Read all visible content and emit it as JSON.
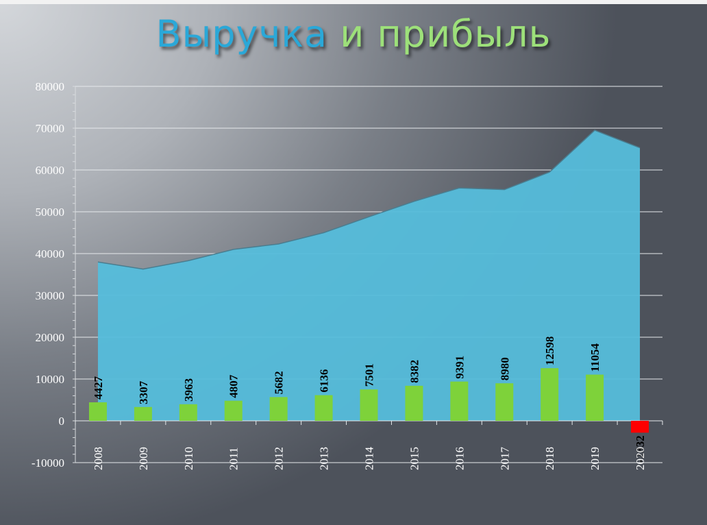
{
  "title": {
    "word1": "Выручка",
    "word2": "и прибыль"
  },
  "colors": {
    "revenue": "#55bddb",
    "profit": "#7ed23a",
    "loss": "#ff0000"
  },
  "chart_data": {
    "type": "area",
    "title": "Выручка и прибыль",
    "categories": [
      "2008",
      "2009",
      "2010",
      "2011",
      "2012",
      "2013",
      "2014",
      "2015",
      "2016",
      "2017",
      "2018",
      "2019",
      "2020"
    ],
    "yticks": [
      "80000",
      "70000",
      "60000",
      "50000",
      "40000",
      "30000",
      "20000",
      "10000",
      "0",
      "-10000"
    ],
    "ylim": [
      -10000,
      80000
    ],
    "grid": true,
    "series": [
      {
        "type": "area",
        "values": [
          38000,
          36300,
          38300,
          41000,
          42300,
          45000,
          48800,
          52500,
          55700,
          55300,
          59500,
          69500,
          65300
        ]
      },
      {
        "type": "bar",
        "values": [
          4427,
          3307,
          3963,
          4807,
          5682,
          6136,
          7501,
          8382,
          9391,
          8980,
          12598,
          11054,
          -2832
        ],
        "labels": [
          "4427",
          "3307",
          "3963",
          "4807",
          "5682",
          "6136",
          "7501",
          "8382",
          "9391",
          "8980",
          "12598",
          "11054",
          "-2832"
        ]
      }
    ]
  }
}
